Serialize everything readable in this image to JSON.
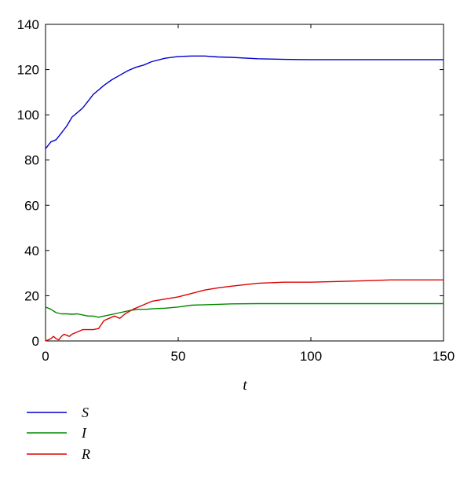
{
  "chart_data": {
    "type": "line",
    "title": "",
    "xlabel": "t",
    "ylabel": "",
    "xlim": [
      0,
      150
    ],
    "ylim": [
      0,
      140
    ],
    "xticks": [
      0,
      50,
      100,
      150
    ],
    "yticks": [
      0,
      20,
      40,
      60,
      80,
      100,
      120,
      140
    ],
    "grid": false,
    "legend_position": "bottom-left, below plot",
    "series": [
      {
        "name": "S",
        "color": "#0000cc",
        "x": [
          0,
          2,
          4,
          6,
          8,
          10,
          12,
          14,
          16,
          18,
          20,
          22,
          25,
          28,
          31,
          34,
          37,
          40,
          45,
          50,
          55,
          60,
          65,
          70,
          80,
          90,
          100,
          110,
          120,
          130,
          140,
          150
        ],
        "y": [
          85,
          88,
          89,
          92,
          95,
          99,
          101,
          103,
          106,
          109,
          111,
          113,
          115.5,
          117.5,
          119.5,
          121,
          122,
          123.5,
          125,
          125.8,
          126,
          126,
          125.6,
          125.4,
          124.8,
          124.5,
          124.4,
          124.4,
          124.4,
          124.4,
          124.4,
          124.4
        ]
      },
      {
        "name": "I",
        "color": "#008800",
        "x": [
          0,
          2,
          4,
          6,
          8,
          10,
          12,
          14,
          16,
          18,
          20,
          22,
          24,
          26,
          28,
          30,
          32,
          35,
          38,
          40,
          45,
          50,
          55,
          60,
          65,
          70,
          80,
          90,
          100,
          110,
          120,
          130,
          140,
          150
        ],
        "y": [
          15,
          14,
          12.5,
          12,
          12,
          11.8,
          12,
          11.5,
          11,
          11,
          10.5,
          11,
          11.5,
          12,
          12.5,
          13,
          13.5,
          14,
          14,
          14.2,
          14.5,
          15,
          15.8,
          16,
          16.2,
          16.4,
          16.5,
          16.5,
          16.5,
          16.5,
          16.5,
          16.5,
          16.5,
          16.5
        ]
      },
      {
        "name": "R",
        "color": "#dd0000",
        "x": [
          0,
          1,
          2,
          3,
          4,
          5,
          6,
          7,
          8,
          9,
          10,
          12,
          14,
          16,
          18,
          20,
          22,
          24,
          26,
          28,
          30,
          33,
          36,
          40,
          45,
          50,
          55,
          60,
          65,
          70,
          80,
          90,
          100,
          110,
          120,
          130,
          140,
          150
        ],
        "y": [
          0,
          0.5,
          1,
          2,
          1,
          0.5,
          2,
          3,
          2.5,
          2,
          3,
          4,
          5,
          5,
          5,
          5.5,
          9,
          10,
          11,
          10,
          12,
          14,
          15.5,
          17.5,
          18.5,
          19.5,
          21,
          22.5,
          23.5,
          24.2,
          25.5,
          26,
          26,
          26.3,
          26.6,
          27,
          27,
          27
        ]
      }
    ]
  }
}
